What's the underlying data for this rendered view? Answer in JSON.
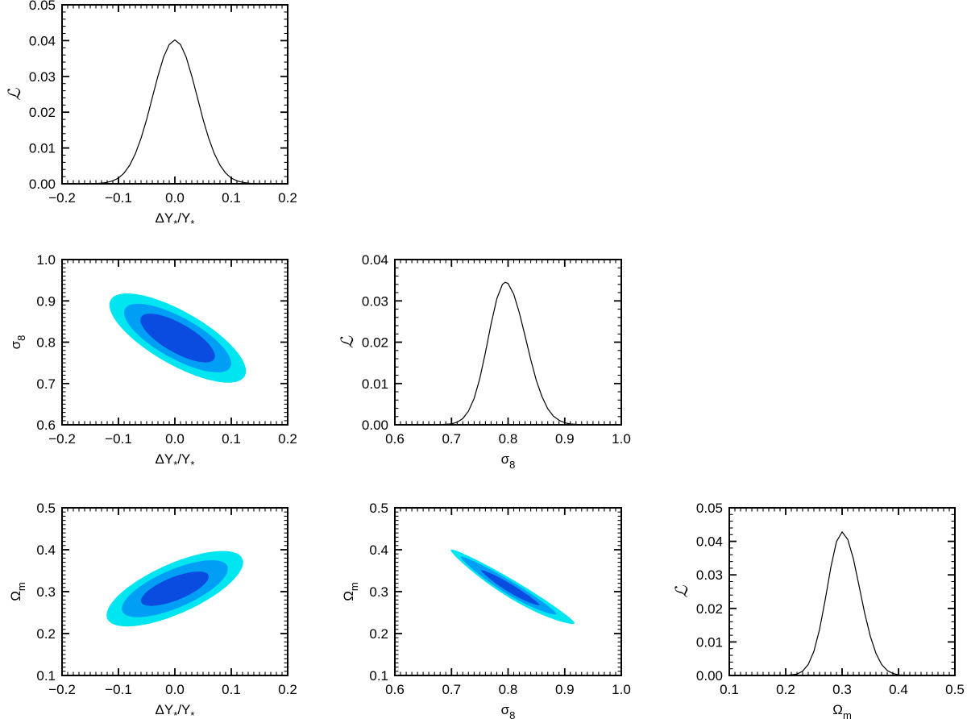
{
  "figure": {
    "kind": "corner-plot",
    "background": "#ffffff",
    "grid": false,
    "tick_direction": "inward",
    "frame": "box"
  },
  "colors": {
    "frame": "#000000",
    "curve": "#000000",
    "text": "#000000",
    "contour_levels": [
      "#00E6F0",
      "#009FF5",
      "#0A4BE0"
    ]
  },
  "labels": {
    "likelihood": [
      {
        "text": "ℒ",
        "script": true
      }
    ],
    "delta_y": [
      {
        "text": "ΔY"
      },
      {
        "text": "*",
        "sub": true
      },
      {
        "text": "/Y"
      },
      {
        "text": "*",
        "sub": true
      }
    ],
    "sigma_8": [
      {
        "text": "σ"
      },
      {
        "text": "8",
        "sub": true
      }
    ],
    "omega_m": [
      {
        "text": "Ω"
      },
      {
        "text": "m",
        "sub": true
      }
    ]
  },
  "chart_data": [
    {
      "id": "likelihood_deltaY",
      "type": "line",
      "position": {
        "row": 0,
        "col": 0
      },
      "x_axis": {
        "min": -0.2,
        "max": 0.2,
        "major": 0.1,
        "minor_div": 10,
        "decimals": 1,
        "label": "delta_y"
      },
      "y_axis": {
        "min": 0.0,
        "max": 0.05,
        "major": 0.01,
        "minor_div": 5,
        "decimals": 2,
        "label": "likelihood"
      },
      "peak": {
        "x": 0.0,
        "y": 0.0402
      },
      "series": {
        "x": [
          -0.2,
          -0.18,
          -0.16,
          -0.14,
          -0.13,
          -0.12,
          -0.11,
          -0.1,
          -0.09,
          -0.08,
          -0.07,
          -0.06,
          -0.05,
          -0.04,
          -0.03,
          -0.02,
          -0.01,
          0.0,
          0.01,
          0.02,
          0.03,
          0.04,
          0.05,
          0.06,
          0.07,
          0.08,
          0.09,
          0.1,
          0.11,
          0.12,
          0.13,
          0.14,
          0.16,
          0.18,
          0.2
        ],
        "y": [
          0,
          0,
          1e-05,
          7e-05,
          0.00018,
          0.0004,
          0.00083,
          0.0016,
          0.003,
          0.0052,
          0.0084,
          0.0127,
          0.018,
          0.0241,
          0.0301,
          0.0354,
          0.0389,
          0.0402,
          0.0389,
          0.0354,
          0.0301,
          0.0241,
          0.018,
          0.0127,
          0.0084,
          0.0052,
          0.003,
          0.0016,
          0.00083,
          0.0004,
          0.00018,
          7e-05,
          1e-05,
          0,
          0
        ]
      }
    },
    {
      "id": "contour_sigma8_deltaY",
      "type": "contour_ellipses",
      "position": {
        "row": 1,
        "col": 0
      },
      "x_axis": {
        "min": -0.2,
        "max": 0.2,
        "major": 0.1,
        "minor_div": 10,
        "decimals": 1,
        "label": "delta_y"
      },
      "y_axis": {
        "min": 0.6,
        "max": 1.0,
        "major": 0.1,
        "minor_div": 10,
        "decimals": 1,
        "label": "sigma_8"
      },
      "levels": [
        {
          "name": "3sigma",
          "cx": 0.005,
          "cy": 0.81,
          "rx": 0.121,
          "ry": 0.108,
          "rho": -0.74,
          "color_index": 0
        },
        {
          "name": "2sigma",
          "cx": 0.005,
          "cy": 0.81,
          "rx": 0.095,
          "ry": 0.083,
          "rho": -0.74,
          "color_index": 1
        },
        {
          "name": "1sigma",
          "cx": 0.005,
          "cy": 0.81,
          "rx": 0.066,
          "ry": 0.059,
          "rho": -0.74,
          "color_index": 2
        }
      ]
    },
    {
      "id": "likelihood_sigma8",
      "type": "line",
      "position": {
        "row": 1,
        "col": 1
      },
      "x_axis": {
        "min": 0.6,
        "max": 1.0,
        "major": 0.1,
        "minor_div": 10,
        "decimals": 1,
        "label": "sigma_8"
      },
      "y_axis": {
        "min": 0.0,
        "max": 0.04,
        "major": 0.01,
        "minor_div": 5,
        "decimals": 2,
        "label": "likelihood"
      },
      "peak": {
        "x": 0.795,
        "y": 0.0345
      },
      "series": {
        "x": [
          0.6,
          0.66,
          0.68,
          0.7,
          0.71,
          0.72,
          0.73,
          0.74,
          0.75,
          0.76,
          0.77,
          0.78,
          0.79,
          0.795,
          0.8,
          0.81,
          0.82,
          0.83,
          0.84,
          0.85,
          0.86,
          0.87,
          0.88,
          0.89,
          0.9,
          0.91,
          0.92,
          0.94,
          1.0
        ],
        "y": [
          0,
          0,
          2e-05,
          0.00023,
          0.00063,
          0.0015,
          0.0033,
          0.0064,
          0.0112,
          0.0175,
          0.0244,
          0.0305,
          0.034,
          0.0345,
          0.0342,
          0.0316,
          0.0271,
          0.0215,
          0.0158,
          0.0107,
          0.0068,
          0.0039,
          0.0021,
          0.0011,
          0.0005,
          0.0002,
          0.0001,
          0,
          0
        ]
      }
    },
    {
      "id": "contour_omegam_deltaY",
      "type": "contour_ellipses",
      "position": {
        "row": 2,
        "col": 0
      },
      "x_axis": {
        "min": -0.2,
        "max": 0.2,
        "major": 0.1,
        "minor_div": 10,
        "decimals": 1,
        "label": "delta_y"
      },
      "y_axis": {
        "min": 0.1,
        "max": 0.5,
        "major": 0.1,
        "minor_div": 10,
        "decimals": 1,
        "label": "omega_m"
      },
      "levels": [
        {
          "name": "3sigma",
          "cx": 0.0,
          "cy": 0.307,
          "rx": 0.121,
          "ry": 0.09,
          "rho": 0.7,
          "color_index": 0
        },
        {
          "name": "2sigma",
          "cx": 0.0,
          "cy": 0.307,
          "rx": 0.094,
          "ry": 0.068,
          "rho": 0.7,
          "color_index": 1
        },
        {
          "name": "1sigma",
          "cx": 0.0,
          "cy": 0.307,
          "rx": 0.06,
          "ry": 0.041,
          "rho": 0.7,
          "color_index": 2
        }
      ]
    },
    {
      "id": "contour_omegam_sigma8",
      "type": "contour_band",
      "position": {
        "row": 2,
        "col": 1
      },
      "x_axis": {
        "min": 0.6,
        "max": 1.0,
        "major": 0.1,
        "minor_div": 10,
        "decimals": 1,
        "label": "sigma_8"
      },
      "y_axis": {
        "min": 0.1,
        "max": 0.5,
        "major": 0.1,
        "minor_div": 10,
        "decimals": 1,
        "label": "omega_m"
      },
      "centerline": {
        "x": [
          0.698,
          0.72,
          0.74,
          0.76,
          0.78,
          0.8,
          0.82,
          0.84,
          0.86,
          0.88,
          0.9,
          0.918
        ],
        "y": [
          0.3995,
          0.3793,
          0.3615,
          0.3442,
          0.3274,
          0.3111,
          0.2952,
          0.2799,
          0.265,
          0.2506,
          0.2366,
          0.2246
        ]
      },
      "levels": [
        {
          "name": "3sigma",
          "x_min": 0.698,
          "x_max": 0.918,
          "half_width": 0.024,
          "color_index": 0
        },
        {
          "name": "2sigma",
          "x_min": 0.716,
          "x_max": 0.886,
          "half_width": 0.018,
          "color_index": 1
        },
        {
          "name": "1sigma",
          "x_min": 0.752,
          "x_max": 0.856,
          "half_width": 0.011,
          "color_index": 2
        }
      ]
    },
    {
      "id": "likelihood_omegam",
      "type": "line",
      "position": {
        "row": 2,
        "col": 2
      },
      "x_axis": {
        "min": 0.1,
        "max": 0.5,
        "major": 0.1,
        "minor_div": 10,
        "decimals": 1,
        "label": "omega_m"
      },
      "y_axis": {
        "min": 0.0,
        "max": 0.05,
        "major": 0.01,
        "minor_div": 5,
        "decimals": 2,
        "label": "likelihood"
      },
      "peak": {
        "x": 0.3,
        "y": 0.0428
      },
      "series": {
        "x": [
          0.1,
          0.2,
          0.22,
          0.23,
          0.24,
          0.25,
          0.26,
          0.27,
          0.28,
          0.29,
          0.3,
          0.31,
          0.32,
          0.33,
          0.34,
          0.35,
          0.36,
          0.37,
          0.38,
          0.39,
          0.4,
          0.42,
          0.5
        ],
        "y": [
          0,
          0,
          0.0004,
          0.0013,
          0.0033,
          0.0072,
          0.0137,
          0.0225,
          0.0322,
          0.0399,
          0.0428,
          0.0406,
          0.0348,
          0.0268,
          0.0186,
          0.0117,
          0.0066,
          0.0033,
          0.0015,
          0.0006,
          0.0002,
          0,
          0
        ]
      }
    }
  ]
}
